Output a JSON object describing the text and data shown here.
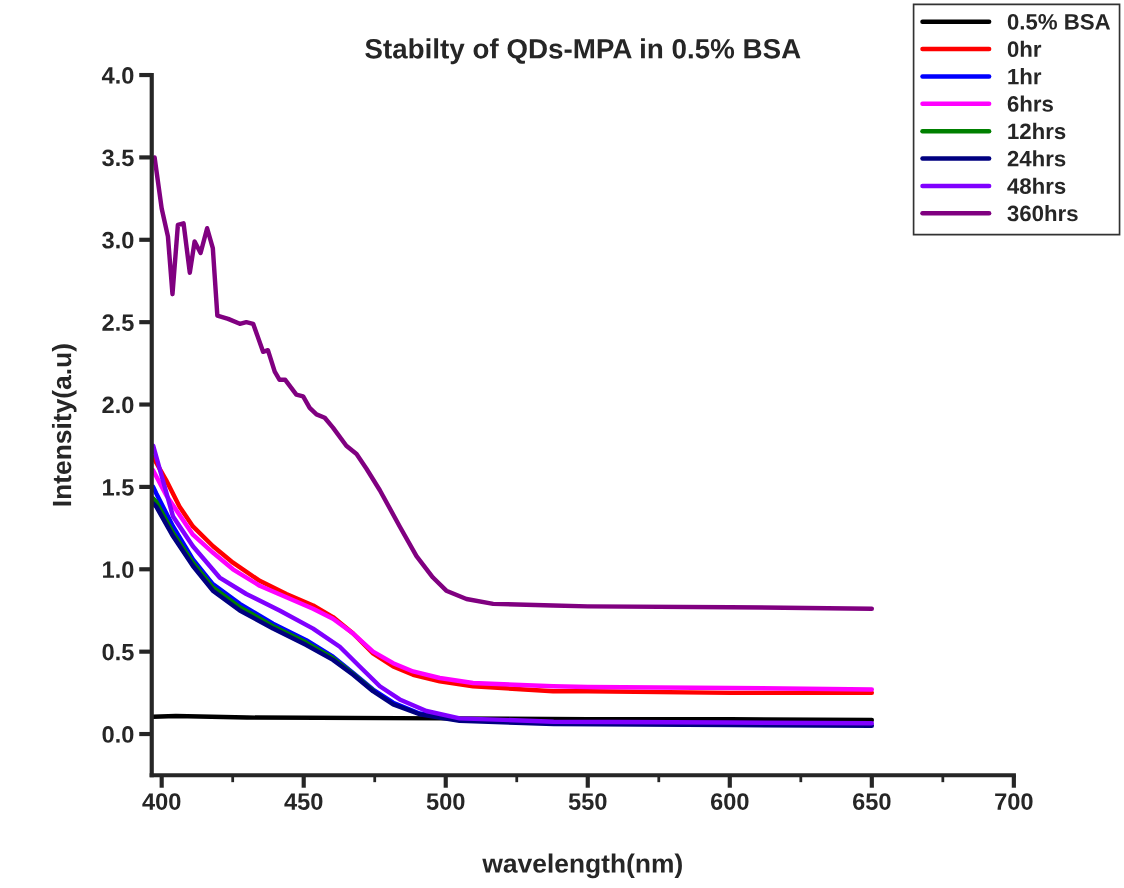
{
  "chart_data": {
    "type": "line",
    "title": "Stabilty of QDs-MPA in 0.5% BSA",
    "xlabel": "wavelength(nm)",
    "ylabel": "Intensity(a.u)",
    "xlim": [
      396.5,
      700
    ],
    "ylim": [
      -0.25,
      4.0
    ],
    "xticks": [
      400,
      {
        "value": 425,
        "label": null
      },
      450,
      {
        "value": 475,
        "label": null
      },
      500,
      {
        "value": 525,
        "label": null
      },
      550,
      {
        "value": 575,
        "label": null
      },
      600,
      {
        "value": 625,
        "label": null
      },
      650,
      {
        "value": 675,
        "label": null
      },
      700
    ],
    "yticks": [
      {
        "value": 0,
        "label": "0.0"
      },
      0.5,
      {
        "value": 1,
        "label": "1.0"
      },
      1.5,
      {
        "value": 2,
        "label": "2.0"
      },
      2.5,
      {
        "value": 3,
        "label": "3.0"
      },
      3.5,
      {
        "value": 4,
        "label": "4.0"
      }
    ],
    "grid": false,
    "legend": "top right",
    "line_style": "solid",
    "marker": "none",
    "series": [
      {
        "name": "0.5% BSA",
        "color": "#000000",
        "x": [
          397,
          405,
          430,
          500,
          550,
          600,
          650
        ],
        "values": [
          0.105,
          0.11,
          0.1,
          0.095,
          0.09,
          0.09,
          0.085
        ]
      },
      {
        "name": "0hr",
        "color": "#ff0000",
        "x": [
          397,
          401.6,
          406.3,
          411,
          418.1,
          425.1,
          434.5,
          443.9,
          453.3,
          460.3,
          467.4,
          474.4,
          481.5,
          488.5,
          497.9,
          509.6,
          537.8,
          550,
          600,
          650
        ],
        "values": [
          1.68,
          1.54,
          1.38,
          1.26,
          1.14,
          1.04,
          0.93,
          0.85,
          0.78,
          0.71,
          0.61,
          0.49,
          0.41,
          0.36,
          0.32,
          0.29,
          0.26,
          0.26,
          0.25,
          0.25
        ]
      },
      {
        "name": "1hr",
        "color": "#0000ff",
        "x": [
          397,
          398.1,
          404,
          411,
          418,
          427.5,
          439.2,
          450.9,
          460.3,
          467.4,
          474.4,
          481.5,
          490.8,
          504.9
        ],
        "values": [
          1.5,
          1.46,
          1.26,
          1.06,
          0.91,
          0.79,
          0.67,
          0.57,
          0.47,
          0.37,
          0.27,
          0.19,
          0.125,
          0.085
        ]
      },
      {
        "name": "6hrs",
        "color": "#ff00ff",
        "x": [
          397,
          401.6,
          406.3,
          411,
          418.1,
          425.1,
          434.5,
          443.9,
          453.3,
          460.3,
          467.4,
          474.4,
          481.5,
          488.5,
          497.9,
          509.6,
          537.8,
          550,
          600,
          650
        ],
        "values": [
          1.6,
          1.45,
          1.33,
          1.21,
          1.1,
          1.0,
          0.9,
          0.83,
          0.76,
          0.7,
          0.61,
          0.5,
          0.43,
          0.38,
          0.34,
          0.31,
          0.29,
          0.285,
          0.28,
          0.27
        ]
      },
      {
        "name": "12hrs",
        "color": "#008000",
        "x": [
          397,
          398.1,
          404,
          411,
          418,
          427.5,
          439.2,
          450.9,
          460.3,
          467.4,
          474.4
        ],
        "values": [
          1.43,
          1.41,
          1.22,
          1.04,
          0.89,
          0.77,
          0.655,
          0.555,
          0.46,
          0.365,
          0.265
        ]
      },
      {
        "name": "24hrs",
        "color": "#000080",
        "x": [
          397,
          398.1,
          404,
          411,
          418,
          427.5,
          439.2,
          450.9,
          460.3,
          467.4,
          474.4,
          481.5,
          490.8,
          504.9,
          538,
          600,
          650
        ],
        "values": [
          1.4,
          1.38,
          1.2,
          1.02,
          0.87,
          0.75,
          0.64,
          0.54,
          0.45,
          0.36,
          0.26,
          0.18,
          0.12,
          0.08,
          0.06,
          0.055,
          0.05
        ]
      },
      {
        "name": "48hrs",
        "color": "#8000ff",
        "x": [
          397,
          404,
          411,
          420.4,
          429.8,
          441.5,
          453.3,
          462.7,
          469.7,
          476.8,
          483.8,
          493.2,
          504.9,
          538,
          600,
          650
        ],
        "values": [
          1.75,
          1.32,
          1.14,
          0.95,
          0.85,
          0.75,
          0.64,
          0.53,
          0.41,
          0.29,
          0.21,
          0.14,
          0.095,
          0.075,
          0.07,
          0.065
        ]
      },
      {
        "name": "360hrs",
        "color": "#800080",
        "x": [
          397.5,
          400,
          402.2,
          403.8,
          405.7,
          407.7,
          409.9,
          411.6,
          413.7,
          416,
          418,
          419.6,
          423.4,
          427.5,
          429.8,
          432.2,
          435.7,
          437.4,
          439.8,
          441.5,
          443.5,
          447.4,
          449.8,
          452.1,
          454.5,
          457.4,
          460.3,
          465,
          468.6,
          472.1,
          476.8,
          483.8,
          489.7,
          495.5,
          500.2,
          507.3,
          516.7,
          537.8,
          550,
          600,
          650
        ],
        "values": [
          3.5,
          3.19,
          3.02,
          2.67,
          3.09,
          3.1,
          2.8,
          2.99,
          2.92,
          3.07,
          2.95,
          2.54,
          2.52,
          2.49,
          2.5,
          2.49,
          2.32,
          2.33,
          2.2,
          2.15,
          2.15,
          2.06,
          2.05,
          1.98,
          1.94,
          1.92,
          1.86,
          1.75,
          1.7,
          1.61,
          1.48,
          1.26,
          1.08,
          0.95,
          0.87,
          0.82,
          0.79,
          0.78,
          0.775,
          0.77,
          0.76
        ]
      }
    ]
  }
}
